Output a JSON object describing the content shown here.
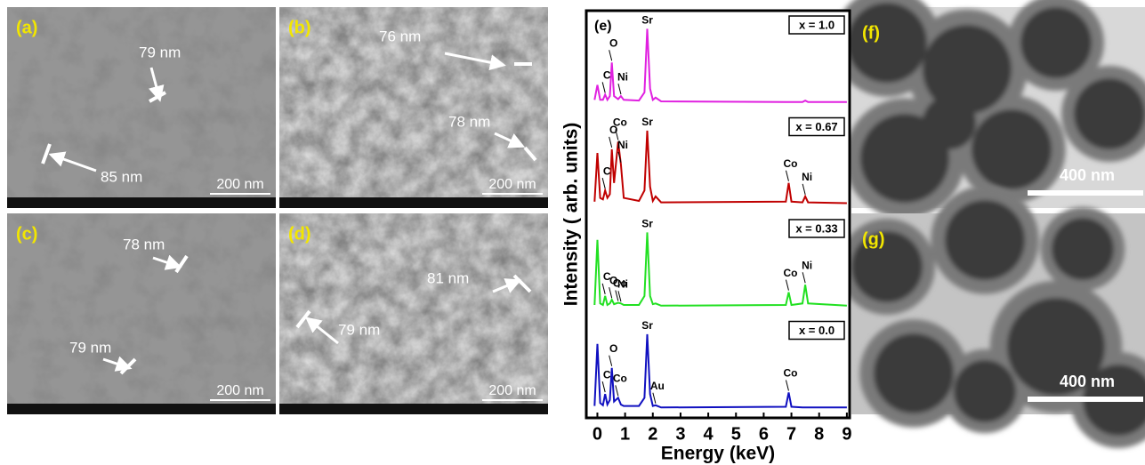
{
  "sem_panels": [
    {
      "label": "(a)",
      "scale_bar": "200 nm",
      "annotations": [
        "79 nm",
        "85 nm"
      ]
    },
    {
      "label": "(b)",
      "scale_bar": "200 nm",
      "annotations": [
        "76 nm",
        "78 nm"
      ]
    },
    {
      "label": "(c)",
      "scale_bar": "200 nm",
      "annotations": [
        "78 nm",
        "79 nm"
      ]
    },
    {
      "label": "(d)",
      "scale_bar": "200 nm",
      "annotations": [
        "81 nm",
        "79 nm"
      ]
    }
  ],
  "tem_panels": [
    {
      "label": "(f)",
      "scale_bar": "400 nm"
    },
    {
      "label": "(g)",
      "scale_bar": "400 nm"
    }
  ],
  "chart_data": {
    "type": "line",
    "label": "(e)",
    "xlabel": "Energy (keV)",
    "ylabel": "Intensity ( arb. units)",
    "xlim": [
      -0.4,
      9.1
    ],
    "xticks": [
      0,
      1,
      2,
      3,
      4,
      5,
      6,
      7,
      8,
      9
    ],
    "ylim": [
      0,
      1.1
    ],
    "x": [
      -0.1,
      0.0,
      0.1,
      0.2,
      0.28,
      0.36,
      0.45,
      0.52,
      0.6,
      0.75,
      0.85,
      0.95,
      1.5,
      1.7,
      1.8,
      1.9,
      2.0,
      2.1,
      2.3,
      6.8,
      6.9,
      7.0,
      7.4,
      7.5,
      7.6,
      9.0
    ],
    "series": [
      {
        "name": "x = 1.0",
        "color": "#e020e0",
        "values": [
          0.05,
          0.25,
          0.05,
          0.05,
          0.12,
          0.05,
          0.1,
          0.55,
          0.1,
          0.06,
          0.1,
          0.05,
          0.04,
          0.15,
          1.0,
          0.2,
          0.05,
          0.08,
          0.03,
          0.02,
          0.02,
          0.02,
          0.02,
          0.04,
          0.02,
          0.02
        ],
        "peaks": [
          {
            "label": "C",
            "x": 0.28
          },
          {
            "label": "O",
            "x": 0.52
          },
          {
            "label": "Ni",
            "x": 0.85
          },
          {
            "label": "Sr",
            "x": 1.8
          }
        ]
      },
      {
        "name": "x = 0.67",
        "color": "#c00000",
        "values": [
          0.05,
          0.7,
          0.1,
          0.08,
          0.2,
          0.1,
          0.15,
          0.75,
          0.3,
          0.85,
          0.55,
          0.1,
          0.06,
          0.2,
          1.0,
          0.25,
          0.06,
          0.12,
          0.04,
          0.05,
          0.3,
          0.05,
          0.04,
          0.12,
          0.04,
          0.03
        ],
        "peaks": [
          {
            "label": "C",
            "x": 0.28
          },
          {
            "label": "O",
            "x": 0.52
          },
          {
            "label": "Co",
            "x": 0.75
          },
          {
            "label": "Ni",
            "x": 0.85
          },
          {
            "label": "Sr",
            "x": 1.8
          },
          {
            "label": "Co",
            "x": 6.9
          },
          {
            "label": "Ni",
            "x": 7.5
          }
        ]
      },
      {
        "name": "x = 0.33",
        "color": "#22e022",
        "values": [
          0.03,
          0.9,
          0.05,
          0.03,
          0.15,
          0.03,
          0.05,
          0.1,
          0.04,
          0.06,
          0.05,
          0.03,
          0.03,
          0.15,
          1.0,
          0.15,
          0.04,
          0.05,
          0.02,
          0.03,
          0.2,
          0.03,
          0.05,
          0.3,
          0.05,
          0.02
        ],
        "peaks": [
          {
            "label": "C",
            "x": 0.28
          },
          {
            "label": "O",
            "x": 0.52
          },
          {
            "label": "Co",
            "x": 0.75
          },
          {
            "label": "Ni",
            "x": 0.85
          },
          {
            "label": "Sr",
            "x": 1.8
          },
          {
            "label": "Co",
            "x": 6.9
          },
          {
            "label": "Ni",
            "x": 7.5
          }
        ]
      },
      {
        "name": "x = 0.0",
        "color": "#1010c0",
        "values": [
          0.04,
          0.87,
          0.08,
          0.05,
          0.2,
          0.06,
          0.12,
          0.55,
          0.1,
          0.15,
          0.06,
          0.04,
          0.04,
          0.15,
          1.0,
          0.2,
          0.04,
          0.05,
          0.02,
          0.03,
          0.22,
          0.03,
          0.02,
          0.02,
          0.02,
          0.02
        ],
        "peaks": [
          {
            "label": "C",
            "x": 0.28
          },
          {
            "label": "O",
            "x": 0.52
          },
          {
            "label": "Co",
            "x": 0.75
          },
          {
            "label": "Sr",
            "x": 1.8
          },
          {
            "label": "Au",
            "x": 2.1
          },
          {
            "label": "Co",
            "x": 6.9
          }
        ]
      }
    ]
  }
}
